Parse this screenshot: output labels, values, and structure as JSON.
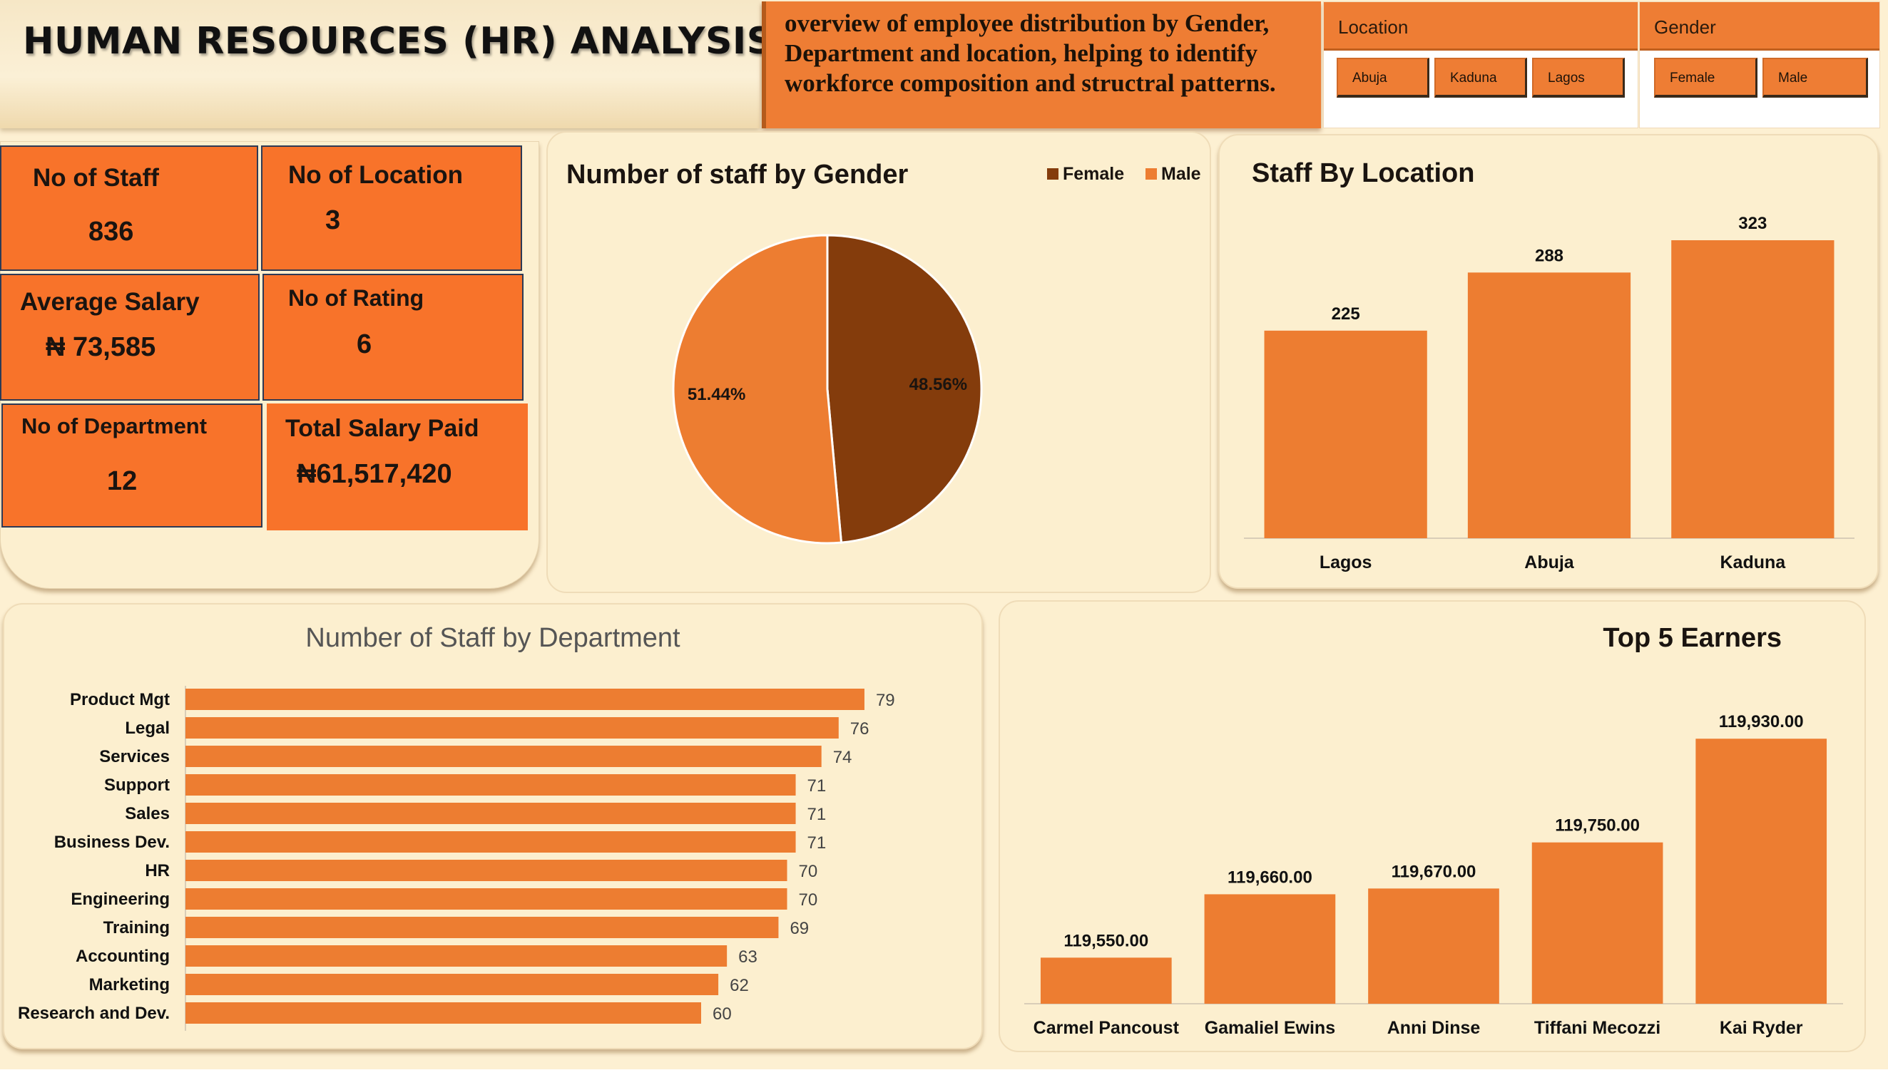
{
  "header": {
    "title": "HUMAN RESOURCES (HR) ANALYSIS",
    "description": "overview of employee distribution by Gender, Department and location, helping to identify workforce composition and structral patterns."
  },
  "slicers": {
    "location": {
      "label": "Location",
      "options": [
        "Abuja",
        "Kaduna",
        "Lagos"
      ]
    },
    "gender": {
      "label": "Gender",
      "options": [
        "Female",
        "Male"
      ]
    }
  },
  "kpis": {
    "staff": {
      "label": "No of Staff",
      "value": "836"
    },
    "location": {
      "label": "No of Location",
      "value": "3"
    },
    "avg_salary": {
      "label": "Average Salary",
      "value": "₦ 73,585"
    },
    "rating": {
      "label": "No of Rating",
      "value": "6"
    },
    "department": {
      "label": "No of Department",
      "value": "12"
    },
    "total_salary": {
      "label": "Total Salary Paid",
      "value": "₦61,517,420"
    }
  },
  "colors": {
    "accent": "#ee7d34",
    "kpi_fill": "#f8732a",
    "female": "#843c0c",
    "male": "#ed7d31",
    "background": "#fdf0d2"
  },
  "chart_data": [
    {
      "id": "gender",
      "type": "pie",
      "title": "Number of staff by Gender",
      "legend_position": "top-right",
      "categories": [
        "Female",
        "Male"
      ],
      "values": [
        48.56,
        51.44
      ],
      "labels": [
        "48.56%",
        "51.44%"
      ],
      "colors": [
        "#843c0c",
        "#ed7d31"
      ]
    },
    {
      "id": "location",
      "type": "bar",
      "title": "Staff By Location",
      "categories": [
        "Lagos",
        "Abuja",
        "Kaduna"
      ],
      "values": [
        225,
        288,
        323
      ],
      "labels": [
        "225",
        "288",
        "323"
      ],
      "ylim": [
        0,
        340
      ],
      "grid": false
    },
    {
      "id": "department",
      "type": "bar",
      "orientation": "horizontal",
      "title": "Number of Staff by Department",
      "categories": [
        "Product Mgt",
        "Legal",
        "Services",
        "Support",
        "Sales",
        "Business Dev.",
        "HR",
        "Engineering",
        "Training",
        "Accounting",
        "Marketing",
        "Research and Dev."
      ],
      "values": [
        79,
        76,
        74,
        71,
        71,
        71,
        70,
        70,
        69,
        63,
        62,
        60
      ],
      "labels": [
        "79",
        "76",
        "74",
        "71",
        "71",
        "71",
        "70",
        "70",
        "69",
        "63",
        "62",
        "60"
      ],
      "xlim": [
        0,
        85
      ],
      "grid": false
    },
    {
      "id": "earners",
      "type": "bar",
      "title": "Top 5 Earners",
      "categories": [
        "Carmel Pancoust",
        "Gamaliel Ewins",
        "Anni Dinse",
        "Tiffani Mecozzi",
        "Kai Ryder"
      ],
      "values": [
        119550,
        119660,
        119670,
        119750,
        119930
      ],
      "labels": [
        "119,550.00",
        "119,660.00",
        "119,670.00",
        "119,750.00",
        "119,930.00"
      ],
      "ylim": [
        119470,
        119960
      ],
      "grid": false
    }
  ]
}
